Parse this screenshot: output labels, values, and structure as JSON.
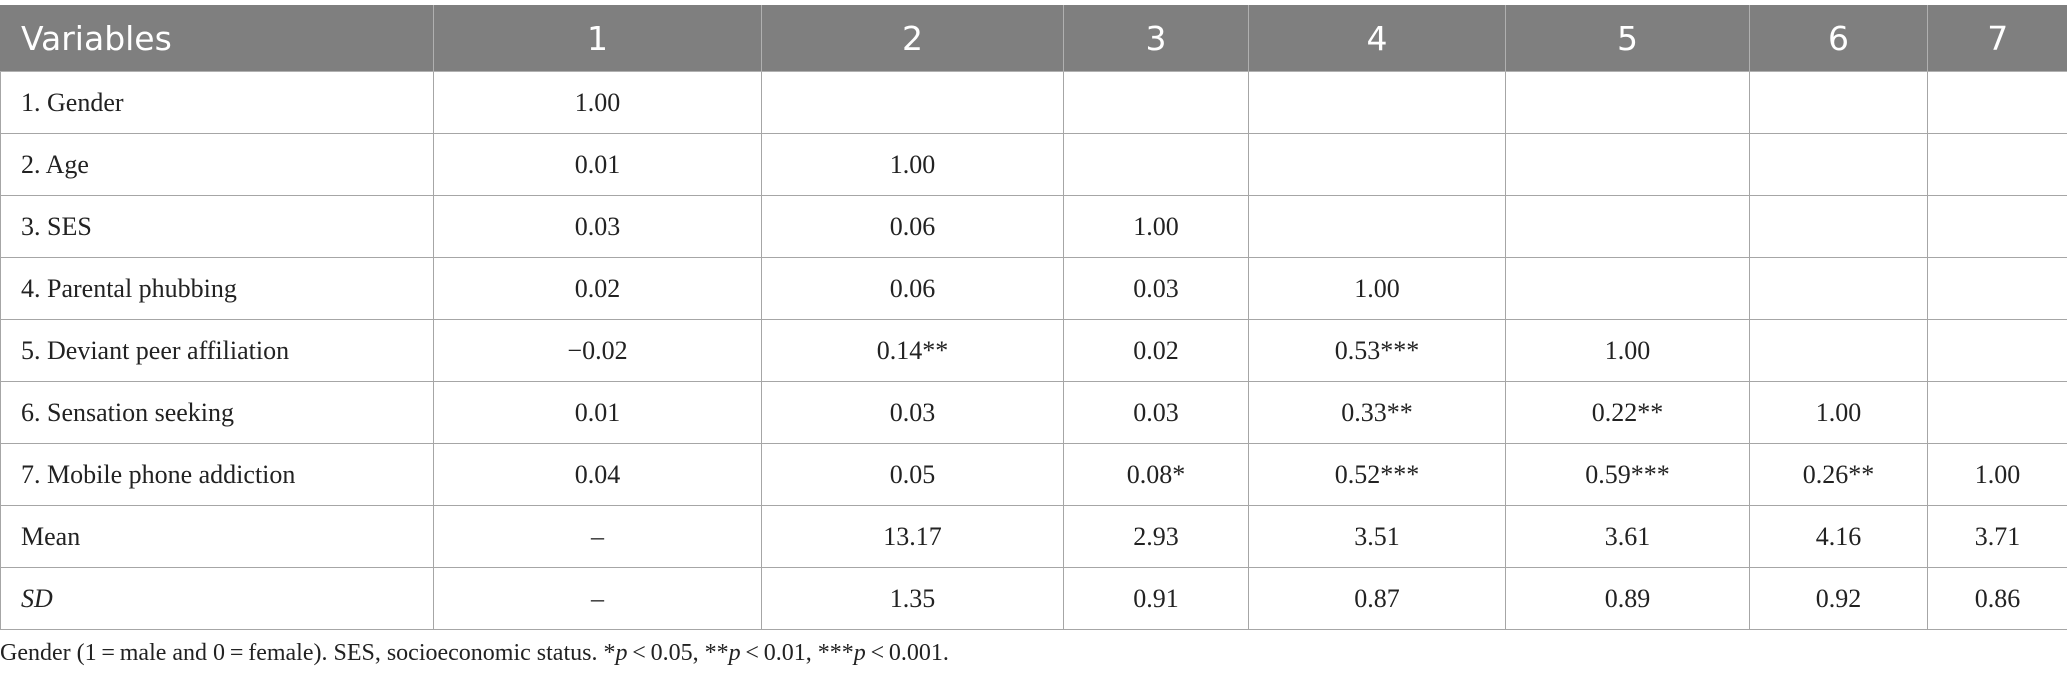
{
  "table": {
    "headers": [
      "Variables",
      "1",
      "2",
      "3",
      "4",
      "5",
      "6",
      "7"
    ],
    "rows": [
      {
        "label": "1. Gender",
        "cells": [
          "1.00",
          "",
          "",
          "",
          "",
          "",
          ""
        ]
      },
      {
        "label": "2. Age",
        "cells": [
          "0.01",
          "1.00",
          "",
          "",
          "",
          "",
          ""
        ]
      },
      {
        "label": "3. SES",
        "cells": [
          "0.03",
          "0.06",
          "1.00",
          "",
          "",
          "",
          ""
        ]
      },
      {
        "label": "4. Parental phubbing",
        "cells": [
          "0.02",
          "0.06",
          "0.03",
          "1.00",
          "",
          "",
          ""
        ]
      },
      {
        "label": "5. Deviant peer affiliation",
        "cells": [
          "−0.02",
          "0.14**",
          "0.02",
          "0.53***",
          "1.00",
          "",
          ""
        ]
      },
      {
        "label": "6. Sensation seeking",
        "cells": [
          "0.01",
          "0.03",
          "0.03",
          "0.33**",
          "0.22**",
          "1.00",
          ""
        ]
      },
      {
        "label": "7. Mobile phone addiction",
        "cells": [
          "0.04",
          "0.05",
          "0.08*",
          "0.52***",
          "0.59***",
          "0.26**",
          "1.00"
        ]
      },
      {
        "label": "Mean",
        "cells": [
          "–",
          "13.17",
          "2.93",
          "3.51",
          "3.61",
          "4.16",
          "3.71"
        ]
      },
      {
        "label": "SD",
        "cells": [
          "–",
          "1.35",
          "0.91",
          "0.87",
          "0.89",
          "0.92",
          "0.86"
        ]
      }
    ]
  },
  "footnote": {
    "part1": "Gender (1 = male and 0 = female). SES, socioeconomic status. *",
    "p1": "p",
    "part2": " < 0.05, **",
    "p2": "p",
    "part3": " < 0.01, ***",
    "p3": "p",
    "part4": " < 0.001."
  }
}
